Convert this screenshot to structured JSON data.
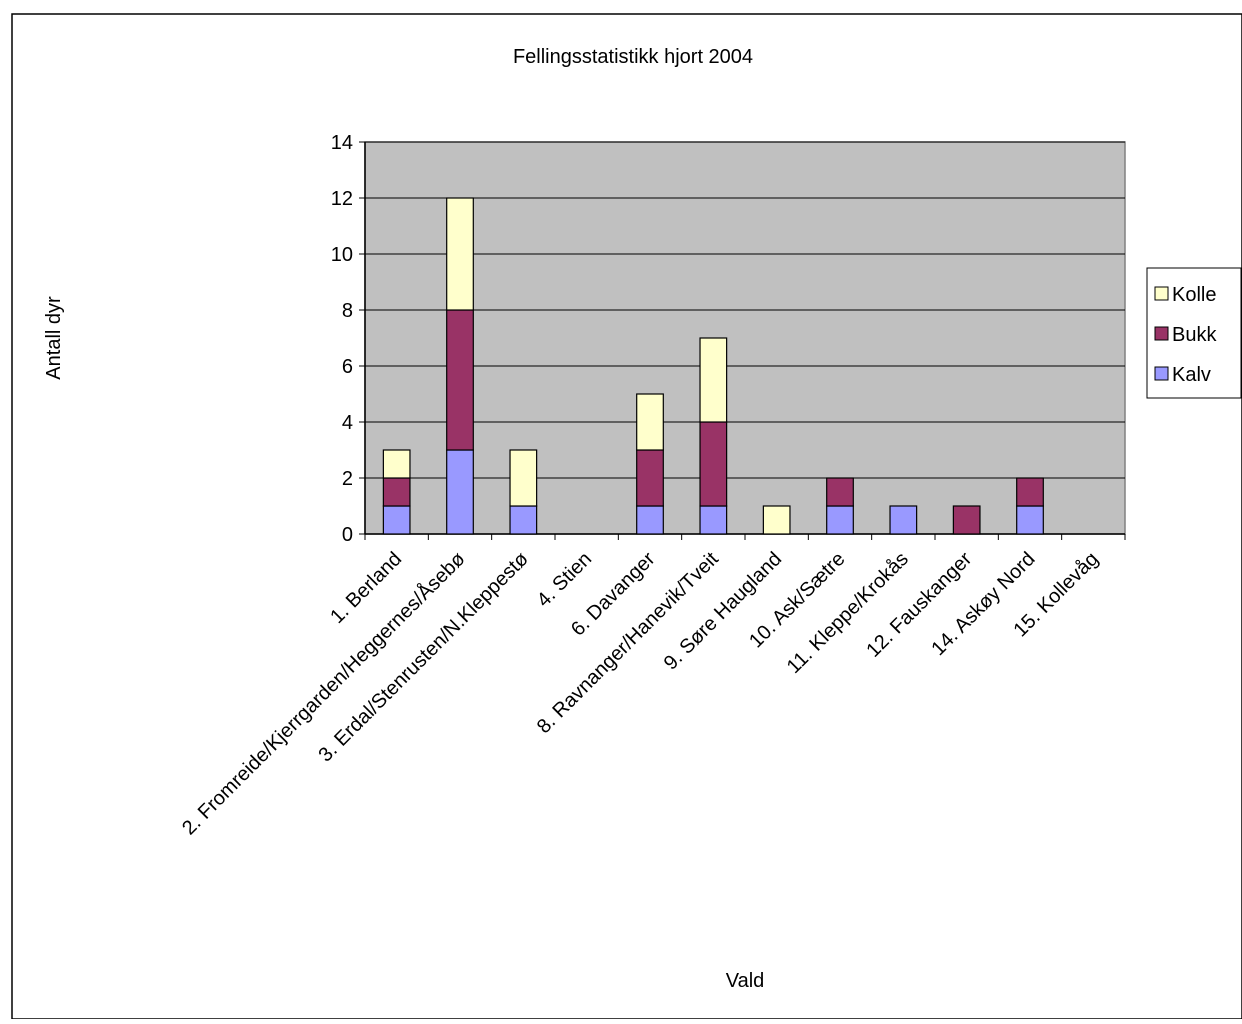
{
  "chart_data": {
    "type": "bar",
    "stacked": true,
    "title": "Fellingsstatistikk hjort 2004",
    "xlabel": "Vald",
    "ylabel": "Antall dyr",
    "ylim": [
      0,
      14
    ],
    "ytick_step": 2,
    "grid": true,
    "legend_placement": "right",
    "categories": [
      "1. Berland",
      "2. Fromreide/Kjerrgarden/Heggernes/Åsebø",
      "3. Erdal/Stenrusten/N.Kleppestø",
      "4. Stien",
      "6. Davanger",
      "8. Ravnanger/Hanevik/Tveit",
      "9. Søre Haugland",
      "10. Ask/Sætre",
      "11. Kleppe/Krokås",
      "12. Fauskanger",
      "14. Askøy Nord",
      "15. Kollevåg"
    ],
    "series": [
      {
        "name": "Kalv",
        "color": "#9999ff",
        "values": [
          1,
          3,
          1,
          0,
          1,
          1,
          0,
          1,
          1,
          0,
          1,
          0
        ]
      },
      {
        "name": "Bukk",
        "color": "#993366",
        "values": [
          1,
          5,
          0,
          0,
          2,
          3,
          0,
          1,
          0,
          1,
          1,
          0
        ]
      },
      {
        "name": "Kolle",
        "color": "#ffffcc",
        "values": [
          1,
          4,
          2,
          0,
          2,
          3,
          1,
          0,
          0,
          0,
          0,
          0
        ]
      }
    ],
    "plot_background": "#c0c0c0"
  }
}
